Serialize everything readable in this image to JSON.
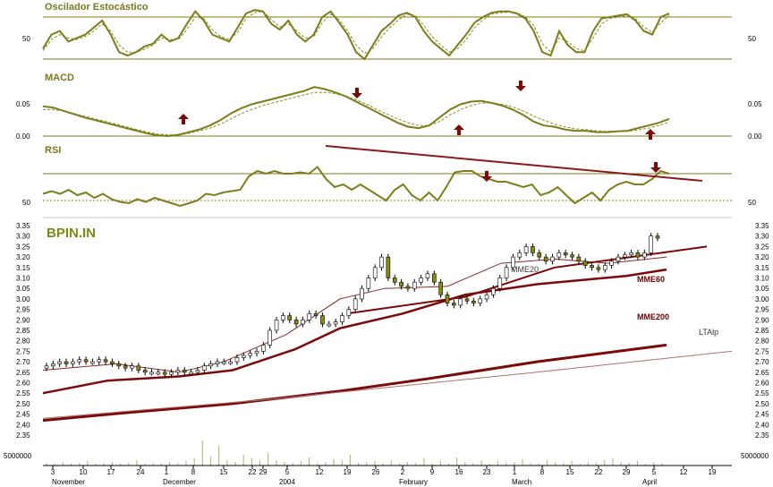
{
  "ticker": "BPIN.IN",
  "colors": {
    "panel_line": "#7d7d1a",
    "dotted": "#8a8a20",
    "ma_dark": "#7a0a0a",
    "ma_thin": "#8a2a2a",
    "arrow": "#7a0a0a",
    "rsi_trend": "#8a1a1a",
    "candle_up": "#ffffff",
    "candle_down": "#8a8a10",
    "volume": "#b0b060"
  },
  "panels": {
    "stoch": {
      "title": "Oscilador Estocástico",
      "label": "50",
      "upper": 80,
      "lower": 20,
      "k": [
        35,
        55,
        60,
        45,
        50,
        55,
        65,
        75,
        55,
        30,
        25,
        30,
        38,
        42,
        55,
        45,
        50,
        70,
        88,
        75,
        55,
        50,
        45,
        65,
        85,
        90,
        88,
        70,
        62,
        75,
        55,
        45,
        55,
        80,
        88,
        72,
        55,
        30,
        20,
        40,
        60,
        70,
        82,
        86,
        80,
        60,
        45,
        35,
        25,
        40,
        55,
        72,
        80,
        86,
        88,
        88,
        85,
        78,
        60,
        30,
        25,
        60,
        40,
        30,
        30,
        60,
        78,
        80,
        82,
        84,
        75,
        60,
        55,
        80,
        85
      ],
      "d": [
        32,
        48,
        55,
        50,
        48,
        52,
        60,
        70,
        60,
        40,
        30,
        30,
        34,
        40,
        50,
        48,
        48,
        62,
        80,
        78,
        62,
        52,
        48,
        58,
        78,
        86,
        88,
        76,
        66,
        70,
        60,
        50,
        52,
        72,
        84,
        76,
        60,
        40,
        28,
        35,
        52,
        65,
        76,
        84,
        82,
        68,
        52,
        40,
        30,
        35,
        48,
        65,
        76,
        84,
        86,
        87,
        86,
        80,
        68,
        42,
        30,
        50,
        45,
        35,
        32,
        50,
        70,
        78,
        80,
        82,
        78,
        66,
        58,
        72,
        82
      ]
    },
    "macd": {
      "title": "MACD",
      "ticks": [
        "0.05",
        "0.00"
      ],
      "range": [
        -0.005,
        0.08
      ],
      "macd": [
        0.045,
        0.043,
        0.038,
        0.033,
        0.028,
        0.024,
        0.02,
        0.016,
        0.012,
        0.008,
        0.004,
        0.001,
        0.0,
        0.002,
        0.006,
        0.01,
        0.016,
        0.024,
        0.034,
        0.042,
        0.048,
        0.052,
        0.056,
        0.06,
        0.064,
        0.068,
        0.074,
        0.071,
        0.066,
        0.06,
        0.052,
        0.044,
        0.036,
        0.028,
        0.02,
        0.014,
        0.012,
        0.016,
        0.028,
        0.04,
        0.048,
        0.052,
        0.053,
        0.05,
        0.046,
        0.04,
        0.032,
        0.022,
        0.016,
        0.014,
        0.01,
        0.008,
        0.008,
        0.006,
        0.006,
        0.007,
        0.008,
        0.012,
        0.016,
        0.02,
        0.026
      ],
      "signal": [
        0.04,
        0.04,
        0.038,
        0.034,
        0.03,
        0.026,
        0.022,
        0.018,
        0.014,
        0.01,
        0.006,
        0.003,
        0.002,
        0.002,
        0.004,
        0.008,
        0.012,
        0.018,
        0.026,
        0.034,
        0.04,
        0.046,
        0.05,
        0.054,
        0.058,
        0.062,
        0.066,
        0.066,
        0.064,
        0.06,
        0.055,
        0.048,
        0.04,
        0.033,
        0.026,
        0.02,
        0.016,
        0.016,
        0.022,
        0.032,
        0.04,
        0.046,
        0.05,
        0.05,
        0.048,
        0.044,
        0.038,
        0.03,
        0.024,
        0.018,
        0.014,
        0.011,
        0.01,
        0.008,
        0.007,
        0.007,
        0.007,
        0.009,
        0.012,
        0.016,
        0.021
      ],
      "arrows": [
        {
          "idx": 13,
          "dir": "up"
        },
        {
          "idx": 27,
          "dir": "down"
        },
        {
          "idx": 36,
          "dir": "up"
        },
        {
          "idx": 41,
          "dir": "down"
        },
        {
          "idx": 58,
          "dir": "up"
        }
      ]
    },
    "rsi": {
      "title": "RSI",
      "label": "50",
      "upper": 70,
      "lower": 50,
      "values": [
        55,
        57,
        55,
        58,
        54,
        56,
        52,
        55,
        51,
        49,
        48,
        51,
        49,
        52,
        50,
        48,
        46,
        48,
        50,
        55,
        54,
        56,
        57,
        58,
        68,
        72,
        70,
        72,
        70,
        70,
        71,
        70,
        75,
        66,
        60,
        62,
        58,
        62,
        58,
        54,
        50,
        58,
        62,
        54,
        50,
        56,
        50,
        60,
        71,
        72,
        72,
        68,
        66,
        64,
        64,
        62,
        60,
        62,
        54,
        56,
        60,
        54,
        48,
        52,
        56,
        50,
        58,
        62,
        64,
        62,
        62,
        66,
        72,
        70
      ],
      "trendline": [
        [
          0.28,
          74
        ],
        [
          0.87,
          62
        ]
      ],
      "arrows": [
        {
          "idx": 29,
          "dir": "down"
        },
        {
          "idx": 51,
          "dir": "down"
        },
        {
          "idx": 71,
          "dir": "down"
        }
      ]
    }
  },
  "price": {
    "yticks": [
      "3.35",
      "3.30",
      "3.25",
      "3.20",
      "3.15",
      "3.10",
      "3.05",
      "3.00",
      "2.95",
      "2.90",
      "2.85",
      "2.80",
      "2.75",
      "2.70",
      "2.65",
      "2.60",
      "2.55",
      "2.50",
      "2.45",
      "2.40",
      "2.35"
    ],
    "range": [
      2.35,
      3.35
    ],
    "volume_label": "5000000",
    "annotations": {
      "mme20": "MME20",
      "mme60": "MME60",
      "mme200": "MME200",
      "ltalp": "LTAlp"
    }
  },
  "xaxis": {
    "days": [
      "3",
      "10",
      "17",
      "24",
      "1",
      "8",
      "15",
      "22",
      "29",
      "5",
      "12",
      "19",
      "26",
      "2",
      "9",
      "16",
      "23",
      "1",
      "8",
      "15",
      "22",
      "29",
      "5",
      "12",
      "19"
    ],
    "months": [
      "November",
      "December",
      "2004",
      "February",
      "March",
      "April"
    ]
  },
  "chart_data": [
    {
      "type": "line",
      "title": "Oscilador Estocástico",
      "reference_lines": [
        20,
        50,
        80
      ],
      "series": [
        {
          "name": "%K",
          "values": [
            35,
            55,
            60,
            45,
            50,
            55,
            65,
            75,
            55,
            30,
            25,
            30,
            38,
            42,
            55,
            45,
            50,
            70,
            88,
            75,
            55,
            50,
            45,
            65,
            85,
            90,
            88,
            70,
            62,
            75,
            55,
            45,
            55,
            80,
            88,
            72,
            55,
            30,
            20,
            40,
            60,
            70,
            82,
            86,
            80,
            60,
            45,
            35,
            25,
            40,
            55,
            72,
            80,
            86,
            88,
            88,
            85,
            78,
            60,
            30,
            25,
            60,
            40,
            30,
            30,
            60,
            78,
            80,
            82,
            84,
            75,
            60,
            55,
            80,
            85
          ]
        },
        {
          "name": "%D",
          "values": [
            32,
            48,
            55,
            50,
            48,
            52,
            60,
            70,
            60,
            40,
            30,
            30,
            34,
            40,
            50,
            48,
            48,
            62,
            80,
            78,
            62,
            52,
            48,
            58,
            78,
            86,
            88,
            76,
            66,
            70,
            60,
            50,
            52,
            72,
            84,
            76,
            60,
            40,
            28,
            35,
            52,
            65,
            76,
            84,
            82,
            68,
            52,
            40,
            30,
            35,
            48,
            65,
            76,
            84,
            86,
            87,
            86,
            80,
            68,
            42,
            30,
            50,
            45,
            35,
            32,
            50,
            70,
            78,
            80,
            82,
            78,
            66,
            58,
            72,
            82
          ]
        }
      ]
    },
    {
      "type": "line",
      "title": "MACD",
      "ylim": [
        0.0,
        0.075
      ]
    },
    {
      "type": "line",
      "title": "RSI",
      "reference_lines": [
        50,
        70
      ]
    },
    {
      "type": "candlestick",
      "title": "BPIN.IN",
      "ylim": [
        2.35,
        3.35
      ],
      "close": [
        2.68,
        2.69,
        2.7,
        2.69,
        2.7,
        2.71,
        2.7,
        2.7,
        2.71,
        2.7,
        2.69,
        2.68,
        2.67,
        2.68,
        2.66,
        2.65,
        2.65,
        2.65,
        2.64,
        2.65,
        2.66,
        2.65,
        2.65,
        2.66,
        2.68,
        2.69,
        2.7,
        2.7,
        2.7,
        2.72,
        2.73,
        2.74,
        2.75,
        2.78,
        2.85,
        2.9,
        2.92,
        2.9,
        2.88,
        2.9,
        2.93,
        2.92,
        2.88,
        2.88,
        2.89,
        2.92,
        2.95,
        3.0,
        3.05,
        3.1,
        3.15,
        3.2,
        3.1,
        3.08,
        3.06,
        3.05,
        3.08,
        3.1,
        3.12,
        3.08,
        3.02,
        2.98,
        2.97,
        3.0,
        2.99,
        2.98,
        3.0,
        3.02,
        3.05,
        3.1,
        3.15,
        3.2,
        3.22,
        3.25,
        3.22,
        3.2,
        3.18,
        3.2,
        3.22,
        3.21,
        3.2,
        3.18,
        3.16,
        3.15,
        3.14,
        3.16,
        3.18,
        3.2,
        3.21,
        3.22,
        3.2,
        3.22,
        3.3,
        3.29
      ],
      "series": [
        {
          "name": "MME20"
        },
        {
          "name": "MME60"
        },
        {
          "name": "MME200"
        },
        {
          "name": "LTAlp"
        }
      ]
    }
  ]
}
